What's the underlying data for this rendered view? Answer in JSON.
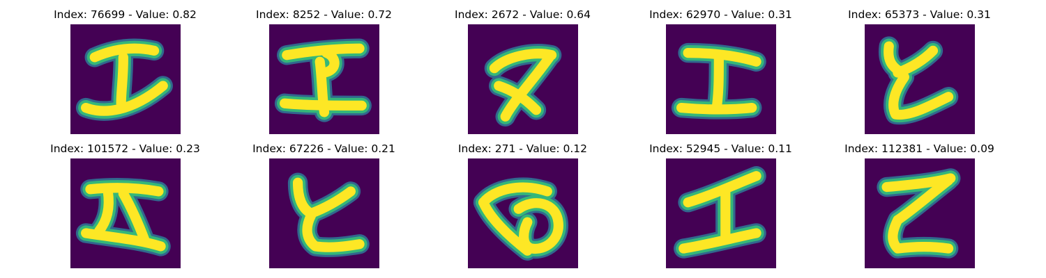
{
  "figure": {
    "colors": {
      "background": "#440154",
      "stroke_core": "#fde725",
      "stroke_mid": "#35b779",
      "stroke_edge": "#31688e"
    },
    "cells": [
      {
        "title": "Index: 76699 - Value: 0.82",
        "index": "76699",
        "value": 0.82,
        "glyph_icon": "handwritten-character-icon"
      },
      {
        "title": "Index: 8252 - Value: 0.72",
        "index": "8252",
        "value": 0.72,
        "glyph_icon": "handwritten-character-icon"
      },
      {
        "title": "Index: 2672 - Value: 0.64",
        "index": "2672",
        "value": 0.64,
        "glyph_icon": "handwritten-character-icon"
      },
      {
        "title": "Index: 62970 - Value: 0.31",
        "index": "62970",
        "value": 0.31,
        "glyph_icon": "handwritten-character-icon"
      },
      {
        "title": "Index: 65373 - Value: 0.31",
        "index": "65373",
        "value": 0.31,
        "glyph_icon": "handwritten-character-icon"
      },
      {
        "title": "Index: 101572 - Value: 0.23",
        "index": "101572",
        "value": 0.23,
        "glyph_icon": "handwritten-character-icon"
      },
      {
        "title": "Index: 67226 - Value: 0.21",
        "index": "67226",
        "value": 0.21,
        "glyph_icon": "handwritten-character-icon"
      },
      {
        "title": "Index: 271 - Value: 0.12",
        "index": "271",
        "value": 0.12,
        "glyph_icon": "handwritten-character-icon"
      },
      {
        "title": "Index: 52945 - Value: 0.11",
        "index": "52945",
        "value": 0.11,
        "glyph_icon": "handwritten-character-icon"
      },
      {
        "title": "Index: 112381 - Value: 0.09",
        "index": "112381",
        "value": 0.09,
        "glyph_icon": "handwritten-character-icon"
      }
    ]
  }
}
